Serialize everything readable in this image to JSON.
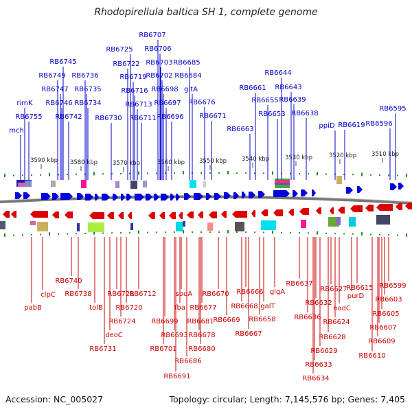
{
  "title": "Rhodopirellula baltica SH 1, complete genome",
  "footer": {
    "accession": "Accession: NC_005027",
    "summary": "Topology: circular; Length: 7,145,576 bp; Genes: 7,405"
  },
  "colors": {
    "forward": "#0000dd",
    "reverse": "#dd0000",
    "backbone": "#777777",
    "tick": "#2a8a2a"
  },
  "scale": [
    {
      "label": "3590 kbp"
    },
    {
      "label": "3580 kbp"
    },
    {
      "label": "3570 kbp"
    },
    {
      "label": "3560 kbp"
    },
    {
      "label": "3550 kbp"
    },
    {
      "label": "3540 kbp"
    },
    {
      "label": "3530 kbp"
    },
    {
      "label": "3520 kbp"
    },
    {
      "label": "3510 kbp"
    }
  ],
  "forward_labels": [
    {
      "text": "RB6707"
    },
    {
      "text": "RB6706"
    },
    {
      "text": "RB6725"
    },
    {
      "text": "RB6722"
    },
    {
      "text": "RB6703"
    },
    {
      "text": "RB6685"
    },
    {
      "text": "RB6745"
    },
    {
      "text": "RB6749"
    },
    {
      "text": "RB6736"
    },
    {
      "text": "RB6719"
    },
    {
      "text": "RB6702"
    },
    {
      "text": "RB6684"
    },
    {
      "text": "RB6644"
    },
    {
      "text": "RB6747"
    },
    {
      "text": "RB6735"
    },
    {
      "text": "RB6716"
    },
    {
      "text": "RB6698"
    },
    {
      "text": "gltA"
    },
    {
      "text": "RB6661"
    },
    {
      "text": "RB6643"
    },
    {
      "text": "rimK"
    },
    {
      "text": "RB6746"
    },
    {
      "text": "RB6734"
    },
    {
      "text": "RB6713"
    },
    {
      "text": "RB6697"
    },
    {
      "text": "RB6676"
    },
    {
      "text": "RB6655"
    },
    {
      "text": "RB6639"
    },
    {
      "text": "RB6755"
    },
    {
      "text": "RB6742"
    },
    {
      "text": "RB6730"
    },
    {
      "text": "RB6711"
    },
    {
      "text": "RB6696"
    },
    {
      "text": "RB6671"
    },
    {
      "text": "RB6653"
    },
    {
      "text": "RB6638"
    },
    {
      "text": "RB6595"
    },
    {
      "text": "RB6596"
    },
    {
      "text": "ppiD"
    },
    {
      "text": "RB6619"
    },
    {
      "text": "RB6663"
    },
    {
      "text": "mch"
    }
  ],
  "reverse_labels": [
    {
      "text": "RB6740"
    },
    {
      "text": "clpC"
    },
    {
      "text": "RB6738"
    },
    {
      "text": "pabB"
    },
    {
      "text": "tolB"
    },
    {
      "text": "RB6728"
    },
    {
      "text": "RB6712"
    },
    {
      "text": "RB6720"
    },
    {
      "text": "RB6724"
    },
    {
      "text": "deoC"
    },
    {
      "text": "RB6731"
    },
    {
      "text": "sodA"
    },
    {
      "text": "RB6670"
    },
    {
      "text": "fba"
    },
    {
      "text": "RB6677"
    },
    {
      "text": "RB6699"
    },
    {
      "text": "RB6681"
    },
    {
      "text": "RB6669"
    },
    {
      "text": "RB6693"
    },
    {
      "text": "RB6678"
    },
    {
      "text": "RB6701"
    },
    {
      "text": "RB6680"
    },
    {
      "text": "RB6686"
    },
    {
      "text": "RB6691"
    },
    {
      "text": "RB6666"
    },
    {
      "text": "RB6668"
    },
    {
      "text": "glgA"
    },
    {
      "text": "galT"
    },
    {
      "text": "RB6658"
    },
    {
      "text": "RB6667"
    },
    {
      "text": "RB6637"
    },
    {
      "text": "RB6627"
    },
    {
      "text": "RB6632"
    },
    {
      "text": "RB6636"
    },
    {
      "text": "nadC"
    },
    {
      "text": "RB6624"
    },
    {
      "text": "RB6628"
    },
    {
      "text": "RB6629"
    },
    {
      "text": "RB6633"
    },
    {
      "text": "RB6634"
    },
    {
      "text": "RB6615"
    },
    {
      "text": "RB6599"
    },
    {
      "text": "purD"
    },
    {
      "text": "RB6603"
    },
    {
      "text": "RB6605"
    },
    {
      "text": "RB6607"
    },
    {
      "text": "RB6609"
    },
    {
      "text": "RB6610"
    }
  ]
}
